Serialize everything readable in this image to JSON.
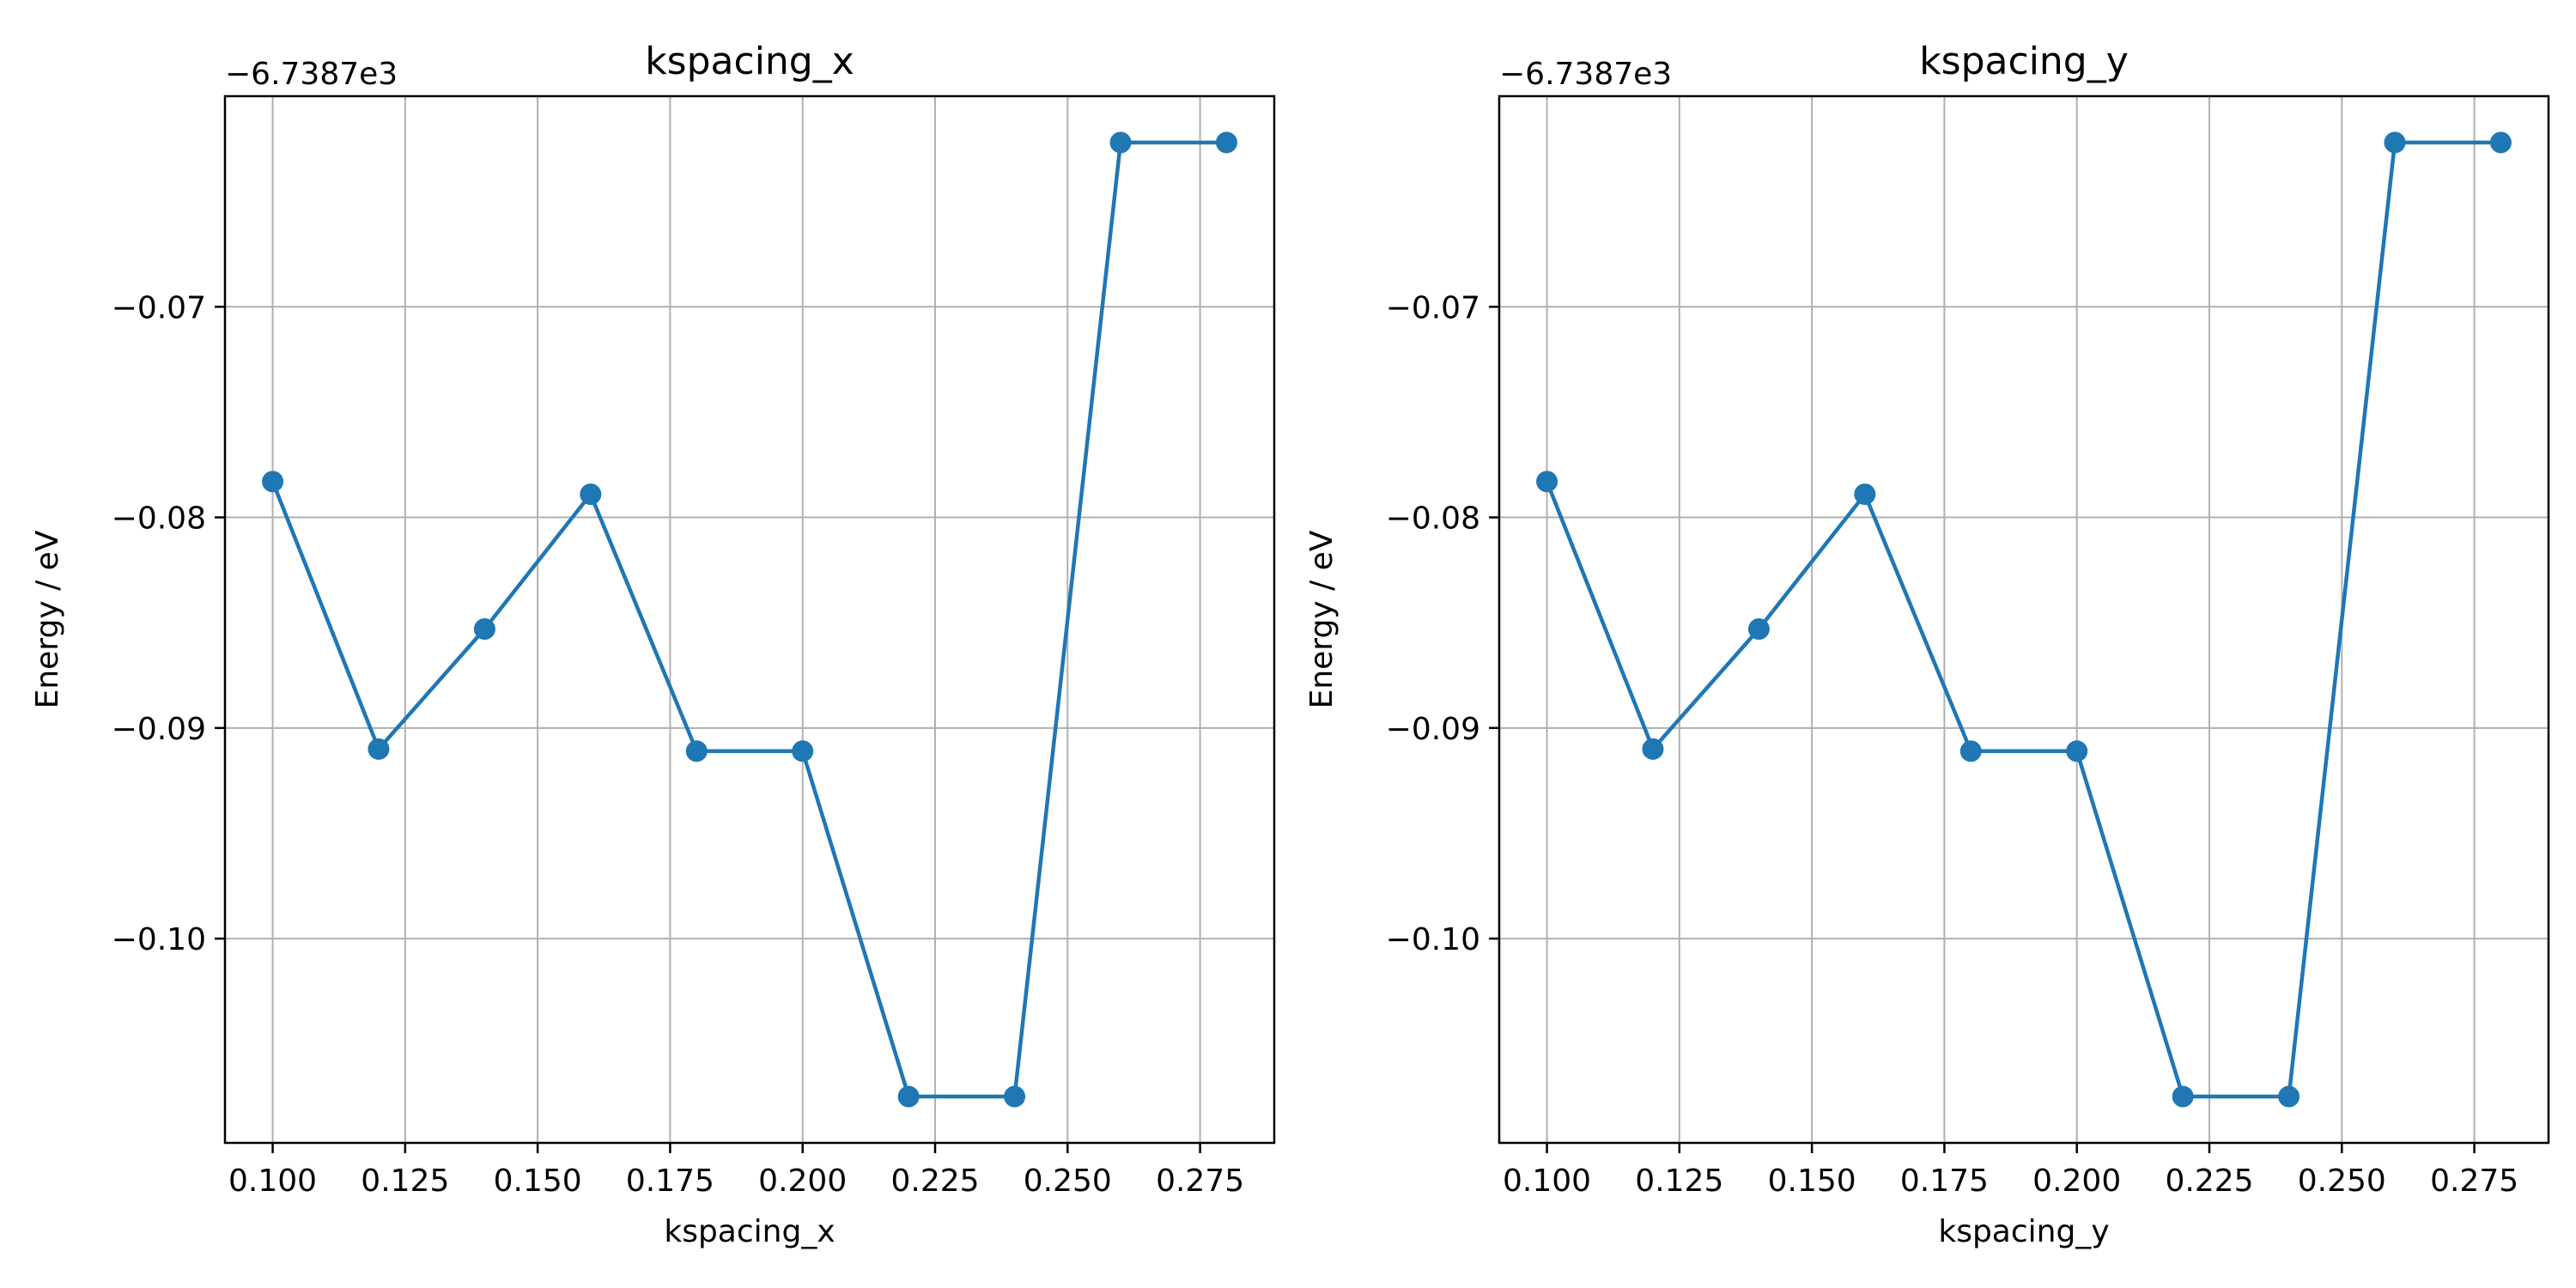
{
  "chart_data": [
    {
      "type": "line",
      "title": "kspacing_x",
      "xlabel": "kspacing_x",
      "ylabel": "Energy / eV",
      "y_offset_label": "−6.7387e3",
      "x_ticks": [
        "0.100",
        "0.125",
        "0.150",
        "0.175",
        "0.200",
        "0.225",
        "0.250",
        "0.275"
      ],
      "y_ticks": [
        "−0.07",
        "−0.08",
        "−0.09",
        "−0.10"
      ],
      "xlim": [
        0.091,
        0.289
      ],
      "ylim": [
        -0.1097,
        -0.06
      ],
      "grid": true,
      "series": [
        {
          "color": "#1f77b4",
          "marker": "circle",
          "x": [
            0.1,
            0.12,
            0.14,
            0.16,
            0.18,
            0.2,
            0.22,
            0.24,
            0.26,
            0.28
          ],
          "y": [
            -0.0783,
            -0.091,
            -0.0853,
            -0.0789,
            -0.0911,
            -0.0911,
            -0.1075,
            -0.1075,
            -0.0622,
            -0.0622
          ]
        }
      ]
    },
    {
      "type": "line",
      "title": "kspacing_y",
      "xlabel": "kspacing_y",
      "ylabel": "Energy / eV",
      "y_offset_label": "−6.7387e3",
      "x_ticks": [
        "0.100",
        "0.125",
        "0.150",
        "0.175",
        "0.200",
        "0.225",
        "0.250",
        "0.275"
      ],
      "y_ticks": [
        "−0.07",
        "−0.08",
        "−0.09",
        "−0.10"
      ],
      "xlim": [
        0.091,
        0.289
      ],
      "ylim": [
        -0.1097,
        -0.06
      ],
      "grid": true,
      "series": [
        {
          "color": "#1f77b4",
          "marker": "circle",
          "x": [
            0.1,
            0.12,
            0.14,
            0.16,
            0.18,
            0.2,
            0.22,
            0.24,
            0.26,
            0.28
          ],
          "y": [
            -0.0783,
            -0.091,
            -0.0853,
            -0.0789,
            -0.0911,
            -0.0911,
            -0.1075,
            -0.1075,
            -0.0622,
            -0.0622
          ]
        }
      ]
    }
  ]
}
